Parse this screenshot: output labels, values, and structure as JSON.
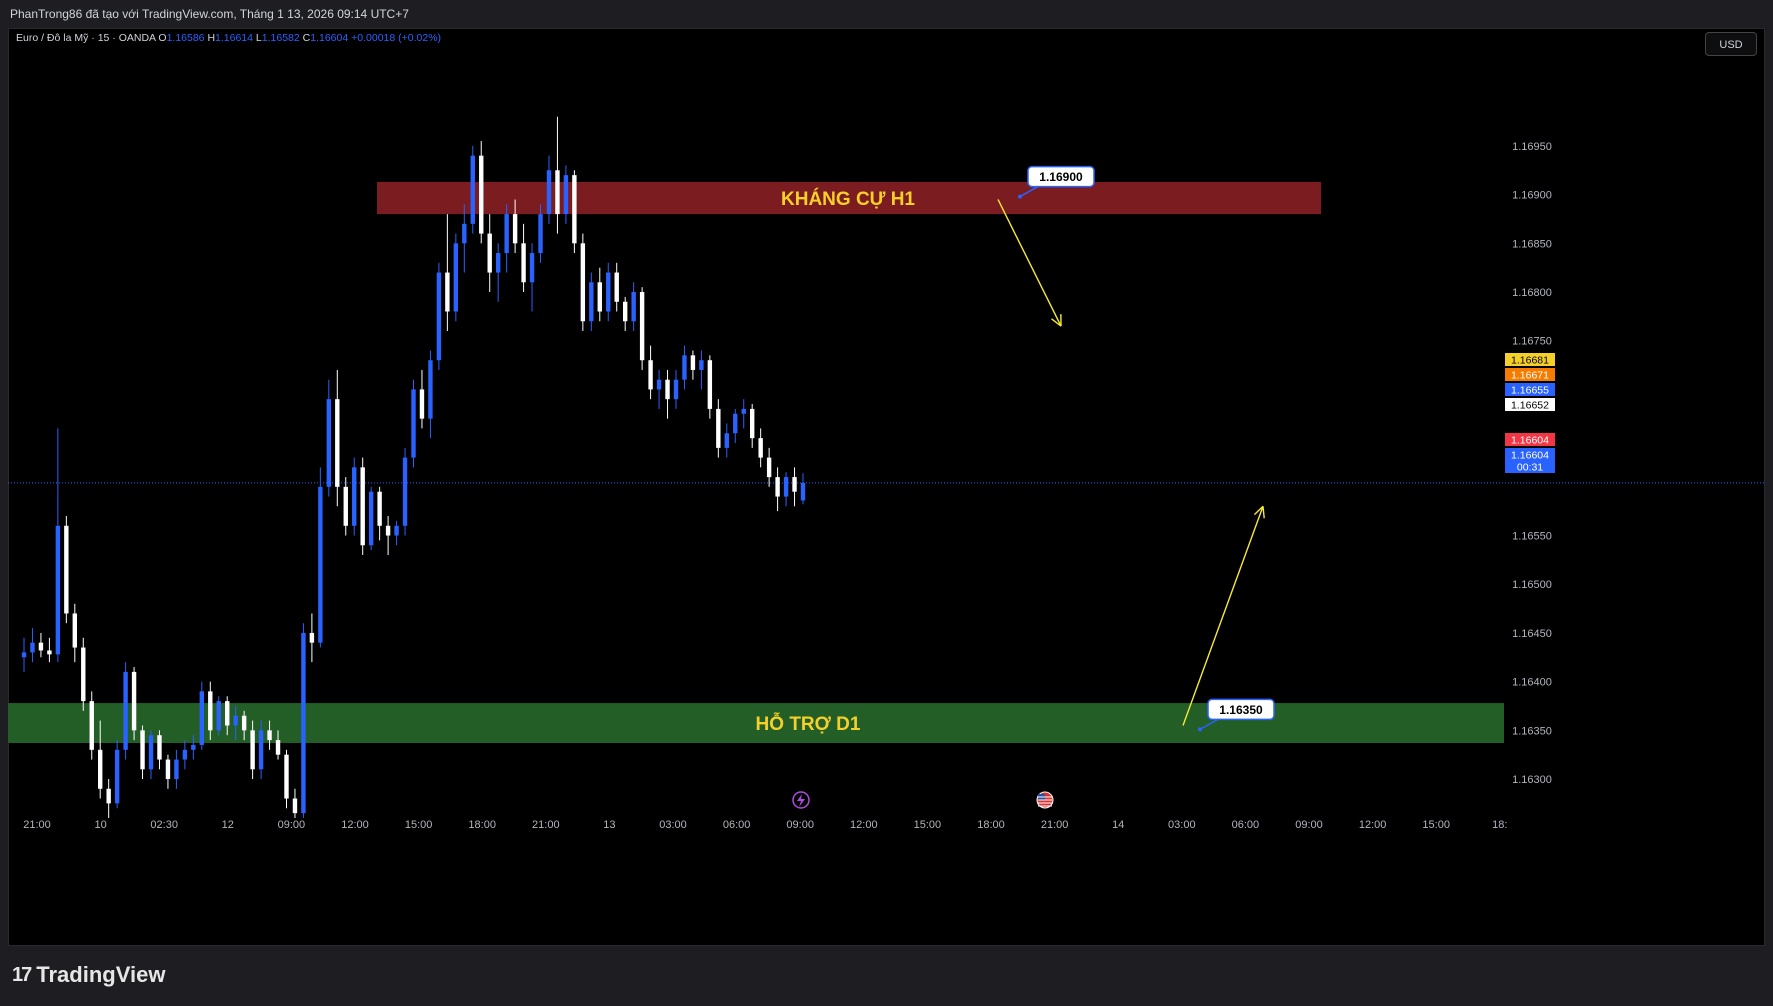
{
  "header": {
    "publish_line": "PhanTrong86 đã tạo với TradingView.com, Tháng 1 13, 2026 09:14 UTC+7"
  },
  "legend": {
    "symbol": "Euro / Đô la Mỹ · 15 · OANDA",
    "o_label": "O",
    "o_value": "1.16586",
    "h_label": "H",
    "h_value": "1.16614",
    "l_label": "L",
    "l_value": "1.16582",
    "c_label": "C",
    "c_value": "1.16604",
    "change": "+0.00018 (+0.02%)"
  },
  "currency_button": "USD",
  "brand": {
    "name": "TradingView",
    "mark": "17"
  },
  "colors": {
    "up": "#2962ff",
    "down": "#ffffff",
    "resistance_zone": "#7b1c20",
    "support_zone": "#235e27",
    "zone_text": "#f5d02a",
    "arrow": "#f5ea3a",
    "crosshair": "#2962ff"
  },
  "icons": [
    "lightning-event-icon",
    "us-flag-event-icon"
  ],
  "chart_data": {
    "type": "candlestick",
    "ylim": [
      1.1626,
      1.1703
    ],
    "y_ticks": [
      "1.16950",
      "1.16900",
      "1.16850",
      "1.16800",
      "1.16750",
      "1.16550",
      "1.16500",
      "1.16450",
      "1.16400",
      "1.16350",
      "1.16300"
    ],
    "x_ticks": [
      "21:00",
      "10",
      "02:30",
      "12",
      "09:00",
      "12:00",
      "15:00",
      "18:00",
      "21:00",
      "13",
      "03:00",
      "06:00",
      "09:00",
      "12:00",
      "15:00",
      "18:00",
      "21:00",
      "14",
      "03:00",
      "06:00",
      "09:00",
      "12:00",
      "15:00",
      "18:"
    ],
    "price_tags": [
      {
        "value": "1.16681",
        "color": "#f5d02a",
        "text_color": "#000"
      },
      {
        "value": "1.16671",
        "color": "#f57c00",
        "text_color": "#fff"
      },
      {
        "value": "1.16655",
        "color": "#2962ff",
        "text_color": "#fff"
      },
      {
        "value": "1.16652",
        "color": "#ffffff",
        "text_color": "#000"
      },
      {
        "value": "1.16604",
        "color": "#f23645",
        "text_color": "#fff"
      },
      {
        "value": "1.16604",
        "color": "#2962ff",
        "text_color": "#fff"
      },
      {
        "value": "00:31",
        "color": "#2962ff",
        "text_color": "#fff"
      }
    ],
    "last_price": 1.16604,
    "zones": [
      {
        "label": "KHÁNG CỰ H1",
        "top": 1.16913,
        "bottom": 1.1688,
        "start_time": "9 23:00",
        "end": "13 16:00"
      },
      {
        "label": "HỖ TRỢ D1",
        "top": 1.16378,
        "bottom": 1.16337,
        "start_time": "9 18:00",
        "end": "14 16:30"
      }
    ],
    "callouts": [
      {
        "value": "1.16900",
        "at": 1.16898
      },
      {
        "value": "1.16350",
        "at": 1.16351
      }
    ],
    "arrows": [
      {
        "from_price": 1.16895,
        "to_price": 1.16765,
        "direction": "down"
      },
      {
        "from_price": 1.16355,
        "to_price": 1.1658,
        "direction": "up"
      }
    ],
    "candles_note": "OHLC series, 15-minute bars, read approximately from the chart",
    "candles": [
      [
        1.16425,
        1.16445,
        1.1641,
        1.1643
      ],
      [
        1.1643,
        1.16455,
        1.1642,
        1.1644
      ],
      [
        1.1644,
        1.1645,
        1.16425,
        1.16432
      ],
      [
        1.16432,
        1.16445,
        1.1642,
        1.16428
      ],
      [
        1.16428,
        1.1666,
        1.1642,
        1.1656
      ],
      [
        1.1656,
        1.1657,
        1.1646,
        1.1647
      ],
      [
        1.1647,
        1.1648,
        1.1642,
        1.16435
      ],
      [
        1.16435,
        1.16445,
        1.1637,
        1.1638
      ],
      [
        1.1638,
        1.1639,
        1.1632,
        1.1633
      ],
      [
        1.1633,
        1.1636,
        1.1628,
        1.1629
      ],
      [
        1.1629,
        1.163,
        1.1626,
        1.16275
      ],
      [
        1.16275,
        1.1634,
        1.1627,
        1.1633
      ],
      [
        1.1633,
        1.1642,
        1.1632,
        1.1641
      ],
      [
        1.1641,
        1.16415,
        1.1634,
        1.1635
      ],
      [
        1.1635,
        1.16355,
        1.163,
        1.1631
      ],
      [
        1.1631,
        1.1635,
        1.163,
        1.16345
      ],
      [
        1.16345,
        1.1635,
        1.1631,
        1.1632
      ],
      [
        1.1632,
        1.16325,
        1.1629,
        1.163
      ],
      [
        1.163,
        1.1633,
        1.1629,
        1.1632
      ],
      [
        1.1632,
        1.1634,
        1.1631,
        1.1633
      ],
      [
        1.1633,
        1.16345,
        1.1632,
        1.16335
      ],
      [
        1.16335,
        1.164,
        1.1633,
        1.1639
      ],
      [
        1.1639,
        1.164,
        1.1634,
        1.1635
      ],
      [
        1.1635,
        1.16385,
        1.16345,
        1.1638
      ],
      [
        1.1638,
        1.16385,
        1.16345,
        1.16355
      ],
      [
        1.16355,
        1.16375,
        1.1634,
        1.16365
      ],
      [
        1.16365,
        1.1637,
        1.1634,
        1.1635
      ],
      [
        1.1635,
        1.1636,
        1.163,
        1.1631
      ],
      [
        1.1631,
        1.1636,
        1.163,
        1.1635
      ],
      [
        1.1635,
        1.1636,
        1.1633,
        1.1634
      ],
      [
        1.1634,
        1.1635,
        1.1632,
        1.16325
      ],
      [
        1.16325,
        1.1633,
        1.1627,
        1.1628
      ],
      [
        1.1628,
        1.1629,
        1.1626,
        1.16265
      ],
      [
        1.16265,
        1.1646,
        1.1626,
        1.1645
      ],
      [
        1.1645,
        1.1647,
        1.1642,
        1.1644
      ],
      [
        1.1644,
        1.1662,
        1.16435,
        1.166
      ],
      [
        1.166,
        1.1671,
        1.1659,
        1.1669
      ],
      [
        1.1669,
        1.1672,
        1.1658,
        1.166
      ],
      [
        1.166,
        1.1661,
        1.1655,
        1.1656
      ],
      [
        1.1656,
        1.1663,
        1.1655,
        1.1662
      ],
      [
        1.1662,
        1.1663,
        1.1653,
        1.1654
      ],
      [
        1.1654,
        1.166,
        1.16535,
        1.16595
      ],
      [
        1.16595,
        1.166,
        1.16545,
        1.1656
      ],
      [
        1.1656,
        1.1657,
        1.1653,
        1.1655
      ],
      [
        1.1655,
        1.16565,
        1.1654,
        1.1656
      ],
      [
        1.1656,
        1.1664,
        1.1655,
        1.1663
      ],
      [
        1.1663,
        1.1671,
        1.1662,
        1.167
      ],
      [
        1.167,
        1.1672,
        1.1666,
        1.1667
      ],
      [
        1.1667,
        1.1674,
        1.1665,
        1.1673
      ],
      [
        1.1673,
        1.1683,
        1.1672,
        1.1682
      ],
      [
        1.1682,
        1.1688,
        1.1676,
        1.1678
      ],
      [
        1.1678,
        1.1686,
        1.1677,
        1.1685
      ],
      [
        1.1685,
        1.1689,
        1.1682,
        1.1687
      ],
      [
        1.1687,
        1.1695,
        1.1686,
        1.1694
      ],
      [
        1.1694,
        1.16955,
        1.1685,
        1.1686
      ],
      [
        1.1686,
        1.1688,
        1.168,
        1.1682
      ],
      [
        1.1682,
        1.1685,
        1.1679,
        1.1684
      ],
      [
        1.1684,
        1.1689,
        1.1682,
        1.1688
      ],
      [
        1.1688,
        1.16895,
        1.1684,
        1.1685
      ],
      [
        1.1685,
        1.1687,
        1.168,
        1.1681
      ],
      [
        1.1681,
        1.1685,
        1.1678,
        1.1684
      ],
      [
        1.1684,
        1.1689,
        1.1683,
        1.1688
      ],
      [
        1.1688,
        1.1694,
        1.1687,
        1.16925
      ],
      [
        1.16925,
        1.1698,
        1.1686,
        1.1688
      ],
      [
        1.1688,
        1.1693,
        1.1687,
        1.1692
      ],
      [
        1.1692,
        1.16925,
        1.1684,
        1.1685
      ],
      [
        1.1685,
        1.1686,
        1.1676,
        1.1677
      ],
      [
        1.1677,
        1.1682,
        1.1676,
        1.1681
      ],
      [
        1.1681,
        1.16825,
        1.1677,
        1.1678
      ],
      [
        1.1678,
        1.1683,
        1.1677,
        1.1682
      ],
      [
        1.1682,
        1.1683,
        1.1678,
        1.1679
      ],
      [
        1.1679,
        1.16795,
        1.1676,
        1.1677
      ],
      [
        1.1677,
        1.1681,
        1.1676,
        1.168
      ],
      [
        1.168,
        1.16805,
        1.1672,
        1.1673
      ],
      [
        1.1673,
        1.16745,
        1.1669,
        1.167
      ],
      [
        1.167,
        1.1672,
        1.1668,
        1.1671
      ],
      [
        1.1671,
        1.1672,
        1.1667,
        1.1669
      ],
      [
        1.1669,
        1.1672,
        1.1668,
        1.1671
      ],
      [
        1.1671,
        1.16745,
        1.167,
        1.16735
      ],
      [
        1.16735,
        1.1674,
        1.1671,
        1.1672
      ],
      [
        1.1672,
        1.1674,
        1.167,
        1.1673
      ],
      [
        1.1673,
        1.16735,
        1.1667,
        1.1668
      ],
      [
        1.1668,
        1.1669,
        1.1663,
        1.1664
      ],
      [
        1.1664,
        1.16665,
        1.1663,
        1.16655
      ],
      [
        1.16655,
        1.1668,
        1.16645,
        1.16675
      ],
      [
        1.16675,
        1.1669,
        1.1666,
        1.1668
      ],
      [
        1.1668,
        1.16685,
        1.1664,
        1.1665
      ],
      [
        1.1665,
        1.1666,
        1.1662,
        1.1663
      ],
      [
        1.1663,
        1.1664,
        1.166,
        1.1661
      ],
      [
        1.1661,
        1.1662,
        1.16575,
        1.1659
      ],
      [
        1.1659,
        1.16615,
        1.1658,
        1.1661
      ],
      [
        1.1661,
        1.1662,
        1.1658,
        1.16595
      ],
      [
        1.16586,
        1.16614,
        1.16582,
        1.16604
      ]
    ]
  }
}
